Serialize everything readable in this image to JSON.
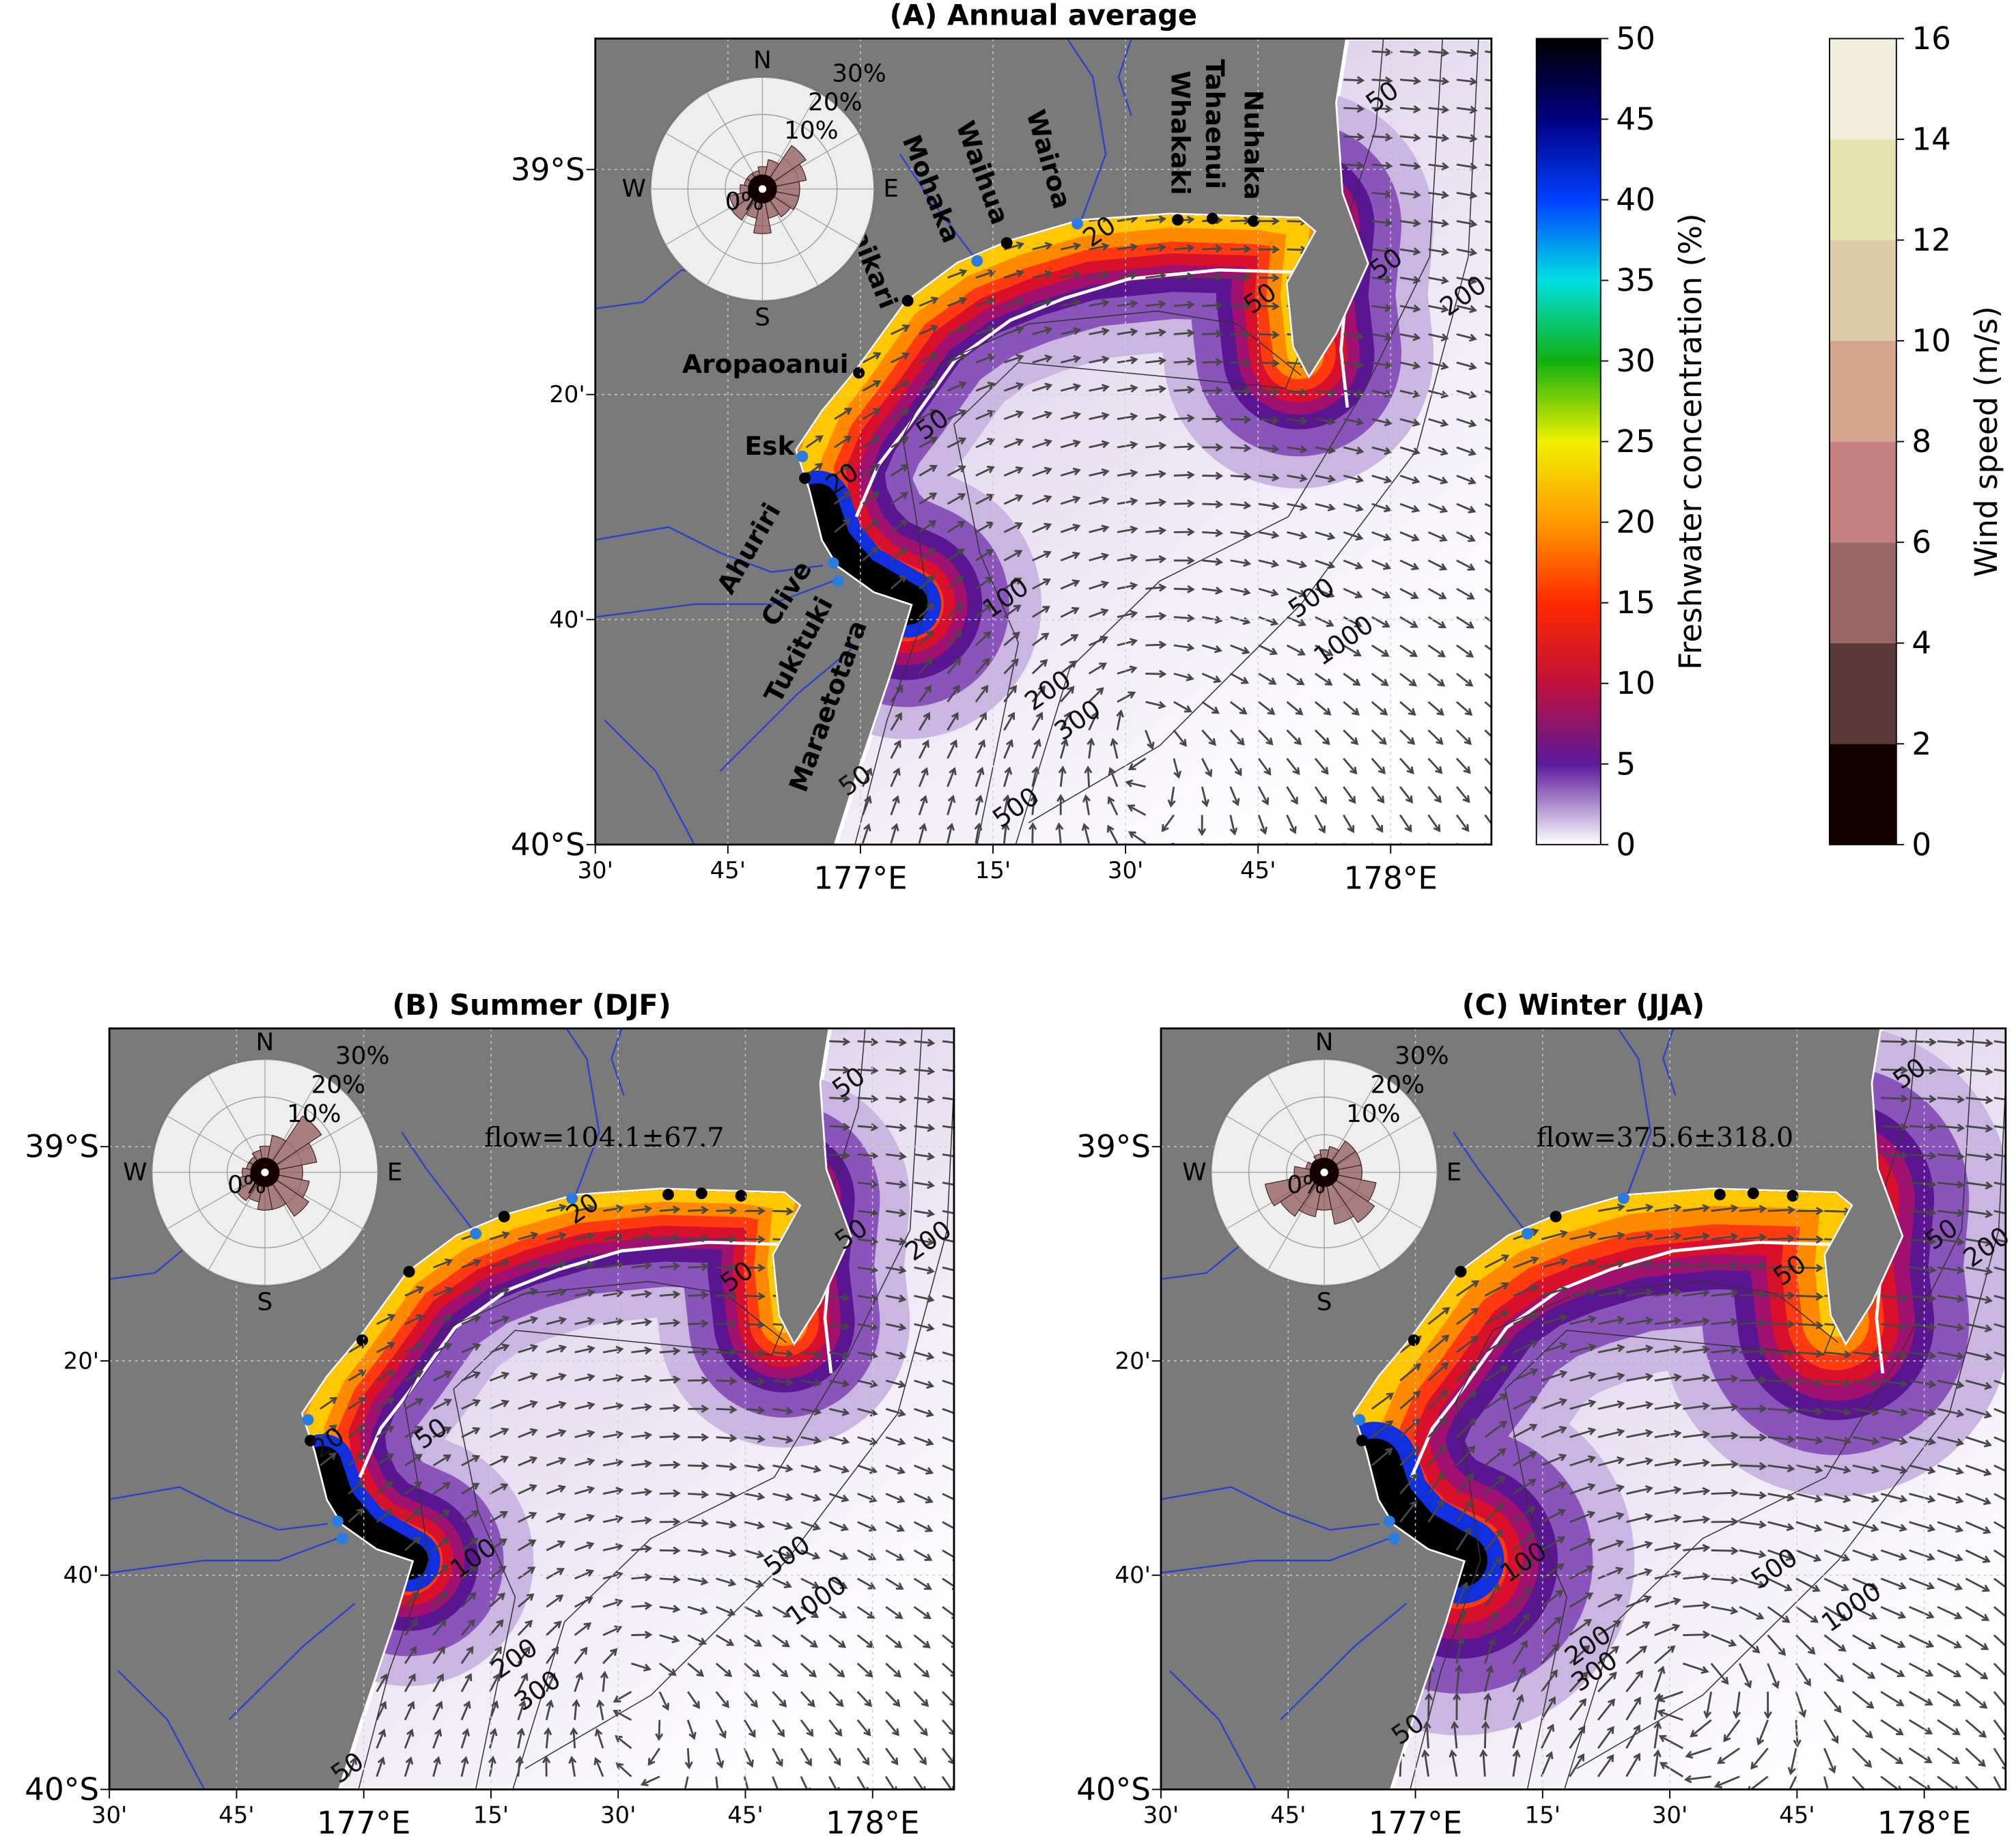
{
  "panels": [
    {
      "title": "(A) Annual average",
      "lonlim": [
        176.5,
        178.19
      ],
      "latlim": [
        -40,
        -38.806
      ],
      "lonticks": [
        {
          "value": 176.5,
          "label": "30'"
        },
        {
          "value": 176.75,
          "label": "45'"
        },
        {
          "value": 177,
          "label": "177°E"
        },
        {
          "value": 177.25,
          "label": "15'"
        },
        {
          "value": 177.5,
          "label": "30'"
        },
        {
          "value": 177.75,
          "label": "45'"
        },
        {
          "value": 178,
          "label": "178°E"
        }
      ],
      "latticks": [
        {
          "value": -39,
          "label": "39°S"
        },
        {
          "value": -39.3333,
          "label": "20'"
        },
        {
          "value": -39.6667,
          "label": "40'"
        },
        {
          "value": -40,
          "label": "40°S"
        }
      ],
      "rose": {
        "compass": [
          "N",
          "E",
          "S",
          "W"
        ],
        "rlim": [
          0,
          30
        ],
        "rticks": [
          {
            "value": 0,
            "label": "0%"
          },
          {
            "value": 10,
            "label": "10%"
          },
          {
            "value": 20,
            "label": "20%"
          },
          {
            "value": 30,
            "label": "30%"
          }
        ],
        "values": [
          6,
          8,
          14,
          12,
          10,
          10,
          9,
          8,
          12,
          8,
          10,
          9,
          6,
          5,
          5,
          5
        ],
        "color": "#8e5a58"
      },
      "rivers": [
        "Nuhaka",
        "Tahaenui",
        "Whakaki",
        "Wairoa",
        "Waihua",
        "Mohaka",
        "Waikari",
        "Aropaoanui",
        "Esk",
        "Ahuriri",
        "Clive",
        "Tukituki",
        "Maraetotara"
      ],
      "contour_labels": [
        50,
        20,
        50,
        50,
        200,
        50,
        20,
        100,
        500,
        1000,
        200,
        300,
        50,
        500
      ]
    },
    {
      "title": "(B) Summer (DJF)",
      "lonlim": [
        176.5,
        178.16
      ],
      "latlim": [
        -40,
        -38.816
      ],
      "lonticks": [
        {
          "value": 176.5,
          "label": "30'"
        },
        {
          "value": 176.75,
          "label": "45'"
        },
        {
          "value": 177,
          "label": "177°E"
        },
        {
          "value": 177.25,
          "label": "15'"
        },
        {
          "value": 177.5,
          "label": "30'"
        },
        {
          "value": 177.75,
          "label": "45'"
        },
        {
          "value": 178,
          "label": "178°E"
        }
      ],
      "latticks": [
        {
          "value": -39,
          "label": "39°S"
        },
        {
          "value": -39.3333,
          "label": "20'"
        },
        {
          "value": -39.6667,
          "label": "40'"
        },
        {
          "value": -40,
          "label": "40°S"
        }
      ],
      "rose": {
        "compass": [
          "N",
          "E",
          "S",
          "W"
        ],
        "rlim": [
          0,
          30
        ],
        "rticks": [
          {
            "value": 0,
            "label": "0%"
          },
          {
            "value": 10,
            "label": "10%"
          },
          {
            "value": 20,
            "label": "20%"
          },
          {
            "value": 30,
            "label": "30%"
          }
        ],
        "values": [
          7,
          10,
          18,
          14,
          10,
          12,
          14,
          10,
          10,
          8,
          9,
          7,
          6,
          5,
          5,
          6
        ],
        "color": "#8e5a58"
      },
      "flow": "flow=104.1±67.7",
      "contour_labels": [
        50,
        20,
        50,
        50,
        200,
        50,
        20,
        100,
        500,
        1000,
        200,
        300,
        50
      ]
    },
    {
      "title": "(C) Winter (JJA)",
      "lonlim": [
        176.5,
        178.16
      ],
      "latlim": [
        -40,
        -38.816
      ],
      "lonticks": [
        {
          "value": 176.5,
          "label": "30'"
        },
        {
          "value": 176.75,
          "label": "45'"
        },
        {
          "value": 177,
          "label": "177°E"
        },
        {
          "value": 177.25,
          "label": "15'"
        },
        {
          "value": 177.5,
          "label": "30'"
        },
        {
          "value": 177.75,
          "label": "45'"
        },
        {
          "value": 178,
          "label": "178°E"
        }
      ],
      "latticks": [
        {
          "value": -39,
          "label": "39°S"
        },
        {
          "value": -39.3333,
          "label": "20'"
        },
        {
          "value": -39.6667,
          "label": "40'"
        },
        {
          "value": -40,
          "label": "40°S"
        }
      ],
      "rose": {
        "compass": [
          "N",
          "E",
          "S",
          "W"
        ],
        "rlim": [
          0,
          30
        ],
        "rticks": [
          {
            "value": 0,
            "label": "0%"
          },
          {
            "value": 10,
            "label": "10%"
          },
          {
            "value": 20,
            "label": "20%"
          },
          {
            "value": 30,
            "label": "30%"
          }
        ],
        "values": [
          6,
          7,
          10,
          10,
          10,
          14,
          16,
          14,
          10,
          12,
          14,
          16,
          8,
          5,
          4,
          5
        ],
        "color": "#8e5a58"
      },
      "flow": "flow=375.6±318.0",
      "contour_labels": [
        50,
        50,
        50,
        200,
        100,
        500,
        1000,
        200,
        300,
        50
      ]
    }
  ],
  "colorbars": [
    {
      "label": "Freshwater concentration (%)",
      "lim": [
        0,
        50
      ],
      "ticks": [
        0,
        5,
        10,
        15,
        20,
        25,
        30,
        35,
        40,
        45,
        50
      ],
      "colors": [
        "#ffffff",
        "#5a1a9a",
        "#c0103a",
        "#ff2a00",
        "#ff9a00",
        "#f0f000",
        "#10b010",
        "#00e0e0",
        "#0040ff",
        "#000080",
        "#000000"
      ]
    },
    {
      "label": "Wind speed (m/s)",
      "lim": [
        0,
        16
      ],
      "ticks": [
        0,
        2,
        4,
        6,
        8,
        10,
        12,
        14,
        16
      ],
      "colors": [
        "#140000",
        "#5a3a38",
        "#9a6664",
        "#c47f7f",
        "#d4a690",
        "#ddcbab",
        "#e6e3b0",
        "#f1efdc"
      ]
    }
  ]
}
